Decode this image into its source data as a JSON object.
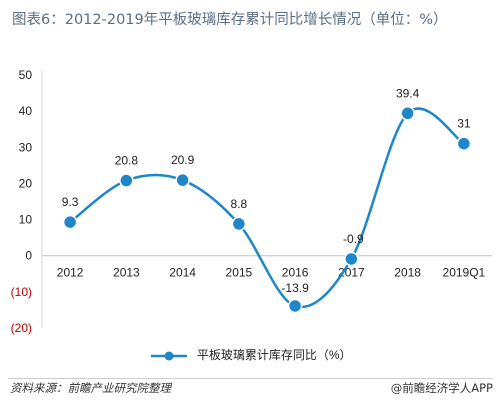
{
  "title": "图表6：2012-2019年平板玻璃库存累计同比增长情况（单位：%）",
  "chart_data": {
    "type": "line",
    "categories": [
      "2012",
      "2013",
      "2014",
      "2015",
      "2016",
      "2017",
      "2018",
      "2019Q1"
    ],
    "series": [
      {
        "name": "平板玻璃累计库存同比（%）",
        "values": [
          9.3,
          20.8,
          20.9,
          8.8,
          -13.9,
          -0.9,
          39.4,
          31
        ]
      }
    ],
    "data_labels": [
      "9.3",
      "20.8",
      "20.9",
      "8.8",
      "-13.9",
      "-0.9",
      "39.4",
      "31"
    ],
    "y_ticks": [
      50,
      40,
      30,
      20,
      10,
      0,
      -10,
      -20
    ],
    "y_tick_labels": [
      "50",
      "40",
      "30",
      "20",
      "10",
      "0",
      "(10)",
      "(20)"
    ],
    "ylim": [
      -20,
      50
    ],
    "line_color": "#1f87c9",
    "negative_label_color": "#c00000",
    "legend_position": "bottom",
    "smooth": true
  },
  "footer": {
    "source": "资料来源：前瞻产业研究院整理",
    "brand": "@前瞻经济学人APP"
  }
}
